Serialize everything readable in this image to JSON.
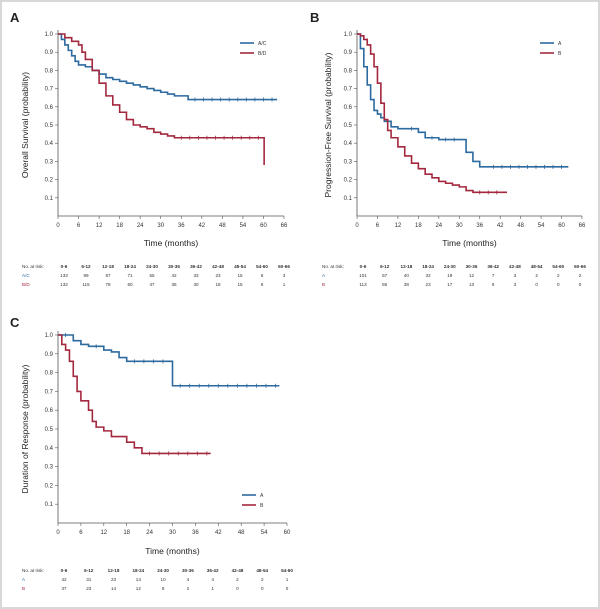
{
  "colors": {
    "series1": "#2c6aa0",
    "series2": "#a3283e",
    "axis": "#555555"
  },
  "chart_data": [
    {
      "panel": "A",
      "type": "line",
      "subtype": "kaplan-meier",
      "xlabel": "Time (months)",
      "ylabel": "Overall Survival (probability)",
      "xlim": [
        0,
        66
      ],
      "ylim": [
        0,
        1.0
      ],
      "xticks": [
        0,
        6,
        12,
        18,
        24,
        30,
        36,
        42,
        48,
        54,
        60,
        66
      ],
      "yticks": [
        0.1,
        0.2,
        0.3,
        0.4,
        0.5,
        0.6,
        0.7,
        0.8,
        0.9,
        1.0
      ],
      "legend_position": "top-right",
      "series": [
        {
          "name": "A/C",
          "x": [
            0,
            1,
            2,
            3,
            4,
            5,
            6,
            8,
            10,
            12,
            14,
            16,
            18,
            20,
            22,
            24,
            26,
            28,
            30,
            32,
            34,
            36,
            38,
            64
          ],
          "y": [
            1.0,
            0.97,
            0.94,
            0.91,
            0.88,
            0.85,
            0.83,
            0.82,
            0.8,
            0.78,
            0.76,
            0.75,
            0.74,
            0.73,
            0.72,
            0.71,
            0.7,
            0.69,
            0.68,
            0.67,
            0.66,
            0.66,
            0.64,
            0.64
          ]
        },
        {
          "name": "B/D",
          "x": [
            0,
            2,
            4,
            6,
            7,
            8,
            10,
            12,
            14,
            16,
            18,
            20,
            22,
            24,
            26,
            28,
            30,
            32,
            34,
            60,
            60.2
          ],
          "y": [
            1.0,
            0.98,
            0.96,
            0.94,
            0.9,
            0.86,
            0.8,
            0.73,
            0.66,
            0.61,
            0.57,
            0.53,
            0.5,
            0.49,
            0.48,
            0.46,
            0.45,
            0.44,
            0.43,
            0.43,
            0.28
          ]
        }
      ],
      "risk_table": {
        "label": "No. at risk:",
        "intervals": [
          "0-6",
          "6-12",
          "12-18",
          "18-24",
          "24-30",
          "30-36",
          "36-42",
          "42-48",
          "48-54",
          "54-60",
          "60-66"
        ],
        "rows": [
          {
            "name": "A/C",
            "values": [
              "133",
              "99",
              "87",
              "71",
              "55",
              "42",
              "33",
              "23",
              "15",
              "6",
              "3"
            ]
          },
          {
            "name": "B/D",
            "values": [
              "132",
              "115",
              "78",
              "60",
              "47",
              "35",
              "30",
              "18",
              "15",
              "6",
              "1"
            ]
          }
        ]
      }
    },
    {
      "panel": "B",
      "type": "line",
      "subtype": "kaplan-meier",
      "xlabel": "Time (months)",
      "ylabel": "Progression-Free Survival (probability)",
      "xlim": [
        0,
        66
      ],
      "ylim": [
        0,
        1.0
      ],
      "xticks": [
        0,
        6,
        12,
        18,
        24,
        30,
        36,
        42,
        48,
        54,
        60,
        66
      ],
      "yticks": [
        0.1,
        0.2,
        0.3,
        0.4,
        0.5,
        0.6,
        0.7,
        0.8,
        0.9,
        1.0
      ],
      "legend_position": "top-right",
      "series": [
        {
          "name": "A",
          "x": [
            0,
            1,
            2,
            3,
            4,
            5,
            6,
            7,
            8,
            10,
            12,
            14,
            18,
            20,
            24,
            30,
            32,
            34,
            36,
            38,
            62
          ],
          "y": [
            1.0,
            0.92,
            0.82,
            0.72,
            0.64,
            0.58,
            0.56,
            0.54,
            0.52,
            0.49,
            0.48,
            0.48,
            0.46,
            0.43,
            0.42,
            0.42,
            0.35,
            0.3,
            0.27,
            0.27,
            0.27
          ]
        },
        {
          "name": "B",
          "x": [
            0,
            1,
            2,
            3,
            4,
            5,
            6,
            7,
            8,
            9,
            10,
            12,
            14,
            16,
            18,
            20,
            22,
            24,
            26,
            28,
            30,
            32,
            34,
            44
          ],
          "y": [
            1.0,
            0.99,
            0.97,
            0.94,
            0.89,
            0.82,
            0.73,
            0.62,
            0.53,
            0.47,
            0.43,
            0.38,
            0.33,
            0.29,
            0.26,
            0.23,
            0.21,
            0.19,
            0.18,
            0.17,
            0.16,
            0.14,
            0.13,
            0.13
          ]
        }
      ],
      "risk_table": {
        "label": "No. at risk:",
        "intervals": [
          "0-6",
          "6-12",
          "12-18",
          "18-24",
          "24-30",
          "30-36",
          "36-42",
          "42-48",
          "48-54",
          "54-60",
          "60-66"
        ],
        "rows": [
          {
            "name": "A",
            "values": [
              "101",
              "57",
              "40",
              "32",
              "19",
              "12",
              "7",
              "3",
              "2",
              "2",
              "2"
            ]
          },
          {
            "name": "B",
            "values": [
              "113",
              "66",
              "38",
              "23",
              "17",
              "13",
              "6",
              "3",
              "0",
              "0",
              "0"
            ]
          }
        ]
      }
    },
    {
      "panel": "C",
      "type": "line",
      "subtype": "kaplan-meier",
      "xlabel": "Time (months)",
      "ylabel": "Duration of Response (probability)",
      "xlim": [
        0,
        60
      ],
      "ylim": [
        0,
        1.0
      ],
      "xticks": [
        0,
        6,
        12,
        18,
        24,
        30,
        36,
        42,
        48,
        54,
        60
      ],
      "yticks": [
        0.1,
        0.2,
        0.3,
        0.4,
        0.5,
        0.6,
        0.7,
        0.8,
        0.9,
        1.0
      ],
      "legend_position": "bottom-right",
      "series": [
        {
          "name": "A",
          "x": [
            0,
            4,
            6,
            8,
            12,
            14,
            16,
            18,
            29,
            30,
            58
          ],
          "y": [
            1.0,
            0.97,
            0.95,
            0.94,
            0.92,
            0.91,
            0.88,
            0.86,
            0.86,
            0.73,
            0.73
          ]
        },
        {
          "name": "B",
          "x": [
            0,
            1,
            2,
            3,
            4,
            5,
            6,
            8,
            9,
            10,
            12,
            14,
            16,
            18,
            20,
            22,
            40
          ],
          "y": [
            1.0,
            0.95,
            0.92,
            0.86,
            0.78,
            0.7,
            0.65,
            0.6,
            0.54,
            0.51,
            0.49,
            0.46,
            0.46,
            0.43,
            0.4,
            0.37,
            0.37
          ]
        }
      ],
      "risk_table": {
        "label": "No. at risk:",
        "intervals": [
          "0-6",
          "6-12",
          "12-18",
          "18-24",
          "24-30",
          "30-36",
          "36-42",
          "42-48",
          "48-54",
          "54-60"
        ],
        "rows": [
          {
            "name": "A",
            "values": [
              "42",
              "31",
              "23",
              "14",
              "10",
              "4",
              "4",
              "2",
              "2",
              "1"
            ]
          },
          {
            "name": "B",
            "values": [
              "37",
              "23",
              "14",
              "12",
              "8",
              "2",
              "1",
              "0",
              "0",
              "0"
            ]
          }
        ]
      }
    }
  ]
}
